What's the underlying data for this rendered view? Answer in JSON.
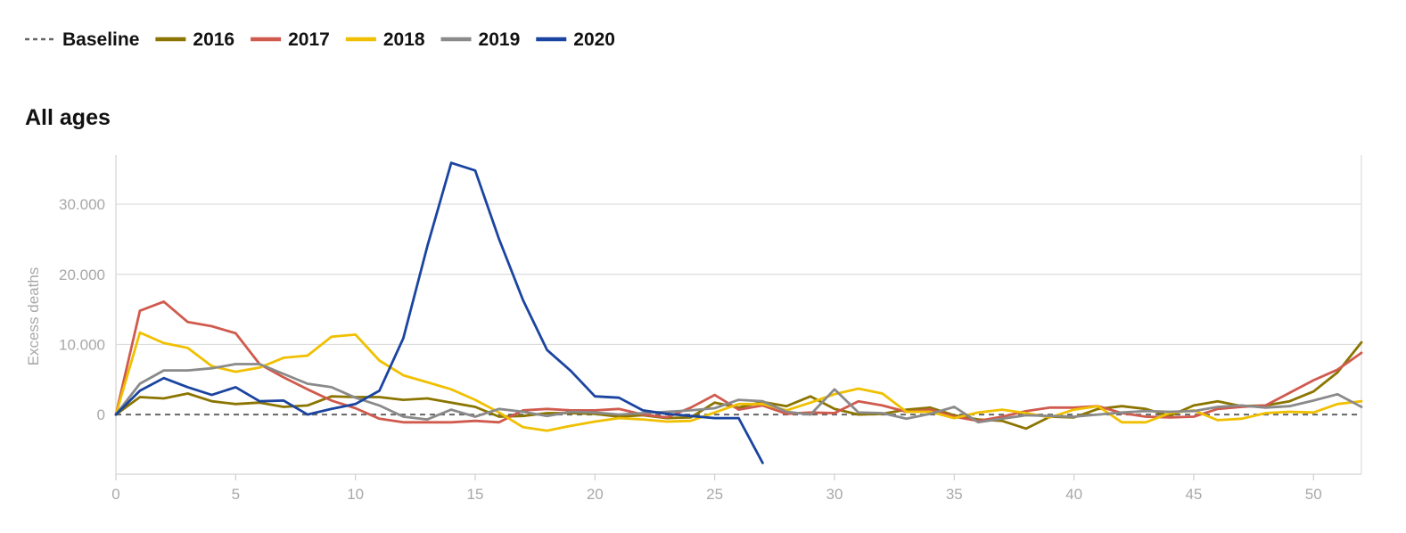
{
  "chart_data": {
    "type": "line",
    "title": "All ages",
    "ylabel": "Excess deaths",
    "xlabel": "",
    "xlim": [
      0,
      52
    ],
    "ylim": [
      -8500,
      37000
    ],
    "x_ticks": [
      0,
      5,
      10,
      15,
      20,
      25,
      30,
      35,
      40,
      45,
      50
    ],
    "x_tick_labels": [
      "0",
      "5",
      "10",
      "15",
      "20",
      "25",
      "30",
      "35",
      "40",
      "45",
      "50"
    ],
    "y_ticks": [
      0,
      10000,
      20000,
      30000
    ],
    "y_tick_labels": [
      "0",
      "10.000",
      "20.000",
      "30.000"
    ],
    "grid": true,
    "legend_position": "top-left",
    "baseline": {
      "name": "Baseline",
      "value": 0,
      "color": "#666666",
      "style": "dashed"
    },
    "series": [
      {
        "name": "2016",
        "color": "#8b7500",
        "values": [
          0,
          2500,
          2300,
          3000,
          1900,
          1500,
          1700,
          1100,
          1300,
          2600,
          2500,
          2500,
          2100,
          2300,
          1700,
          1100,
          -300,
          -200,
          200,
          200,
          100,
          -300,
          -100,
          -500,
          -400,
          1700,
          1000,
          1800,
          1200,
          2600,
          800,
          0,
          100,
          700,
          1000,
          -100,
          -700,
          -900,
          -2000,
          -300,
          -400,
          800,
          1200,
          800,
          -200,
          1300,
          1900,
          1200,
          1300,
          1900,
          3300,
          6000,
          10300
        ]
      },
      {
        "name": "2017",
        "color": "#d05a4d",
        "values": [
          0,
          14800,
          16100,
          13200,
          12600,
          11600,
          7200,
          5300,
          3600,
          2000,
          900,
          -600,
          -1100,
          -1100,
          -1100,
          -900,
          -1100,
          600,
          800,
          600,
          600,
          800,
          0,
          -400,
          1000,
          2800,
          700,
          1300,
          100,
          300,
          200,
          1900,
          1300,
          400,
          700,
          -300,
          -900,
          -300,
          500,
          1000,
          1000,
          1200,
          200,
          -300,
          -400,
          -300,
          800,
          1100,
          1300,
          3100,
          4900,
          6400,
          8800
        ]
      },
      {
        "name": "2018",
        "color": "#f0c000",
        "values": [
          0,
          11700,
          10200,
          9500,
          6900,
          6100,
          6700,
          8100,
          8400,
          11100,
          11400,
          7700,
          5600,
          4600,
          3600,
          2100,
          300,
          -1800,
          -2300,
          -1600,
          -1000,
          -500,
          -700,
          -1000,
          -900,
          300,
          1500,
          1500,
          600,
          1700,
          2900,
          3700,
          3000,
          400,
          400,
          -500,
          300,
          700,
          200,
          -400,
          700,
          1200,
          -1100,
          -1100,
          200,
          600,
          -800,
          -600,
          200,
          400,
          300,
          1500,
          1900
        ]
      },
      {
        "name": "2019",
        "color": "#8a8a8a",
        "values": [
          0,
          4400,
          6300,
          6300,
          6600,
          7200,
          7200,
          5800,
          4400,
          3900,
          2400,
          1300,
          -300,
          -700,
          700,
          -300,
          800,
          400,
          -200,
          400,
          300,
          0,
          200,
          400,
          600,
          900,
          2100,
          1900,
          400,
          0,
          3600,
          300,
          200,
          -600,
          100,
          1100,
          -1100,
          -600,
          -100,
          -200,
          -300,
          0,
          300,
          500,
          400,
          500,
          1100,
          1300,
          1000,
          1200,
          2000,
          2900,
          1100
        ]
      },
      {
        "name": "2020",
        "color": "#1a44a0",
        "values": [
          0,
          3400,
          5200,
          3900,
          2800,
          3900,
          1900,
          2000,
          0,
          800,
          1500,
          3400,
          10900,
          24000,
          35900,
          34800,
          25000,
          16300,
          9200,
          6200,
          2600,
          2400,
          600,
          100,
          -200,
          -500,
          -500,
          -6900
        ]
      }
    ]
  }
}
